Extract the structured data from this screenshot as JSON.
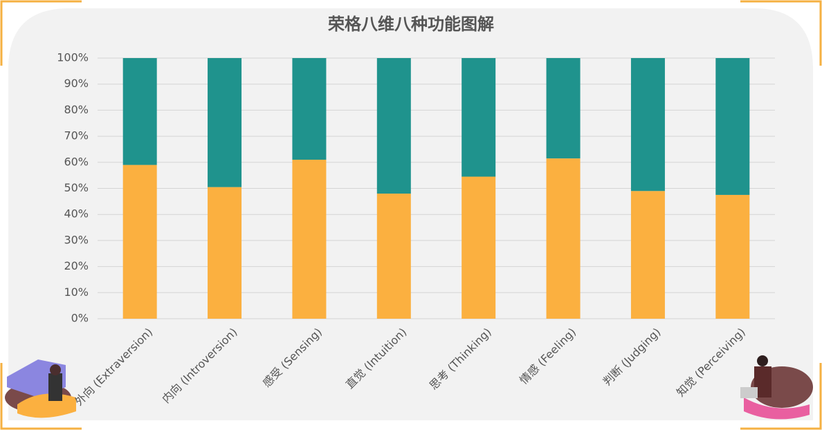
{
  "chart_data": {
    "type": "stacked_bar_100",
    "title": "荣格八维八种功能图解",
    "categories": [
      "外向 (Extraversion)",
      "内向 (Introversion)",
      "感受 (Sensing)",
      "直觉 (Intuition)",
      "思考 (Thinking)",
      "情感 (Feeling)",
      "判断 (Judging)",
      "知觉 (Perceiving)"
    ],
    "series": [
      {
        "color": "#fbb040",
        "values": [
          59,
          50.5,
          61,
          48,
          54.5,
          61.5,
          49,
          47.5
        ]
      },
      {
        "color": "#1f938d",
        "values": [
          41,
          49.5,
          39,
          52,
          45.5,
          38.5,
          51,
          52.5
        ]
      }
    ],
    "ylim": [
      0,
      100
    ],
    "yticks": [
      {
        "value": 0,
        "label": "0%"
      },
      {
        "value": 10,
        "label": "10%"
      },
      {
        "value": 20,
        "label": "20%"
      },
      {
        "value": 30,
        "label": "30%"
      },
      {
        "value": 40,
        "label": "40%"
      },
      {
        "value": 50,
        "label": "50%"
      },
      {
        "value": 60,
        "label": "60%"
      },
      {
        "value": 70,
        "label": "70%"
      },
      {
        "value": 80,
        "label": "80%"
      },
      {
        "value": 90,
        "label": "90%"
      },
      {
        "value": 100,
        "label": "100%"
      }
    ],
    "grid": true
  }
}
